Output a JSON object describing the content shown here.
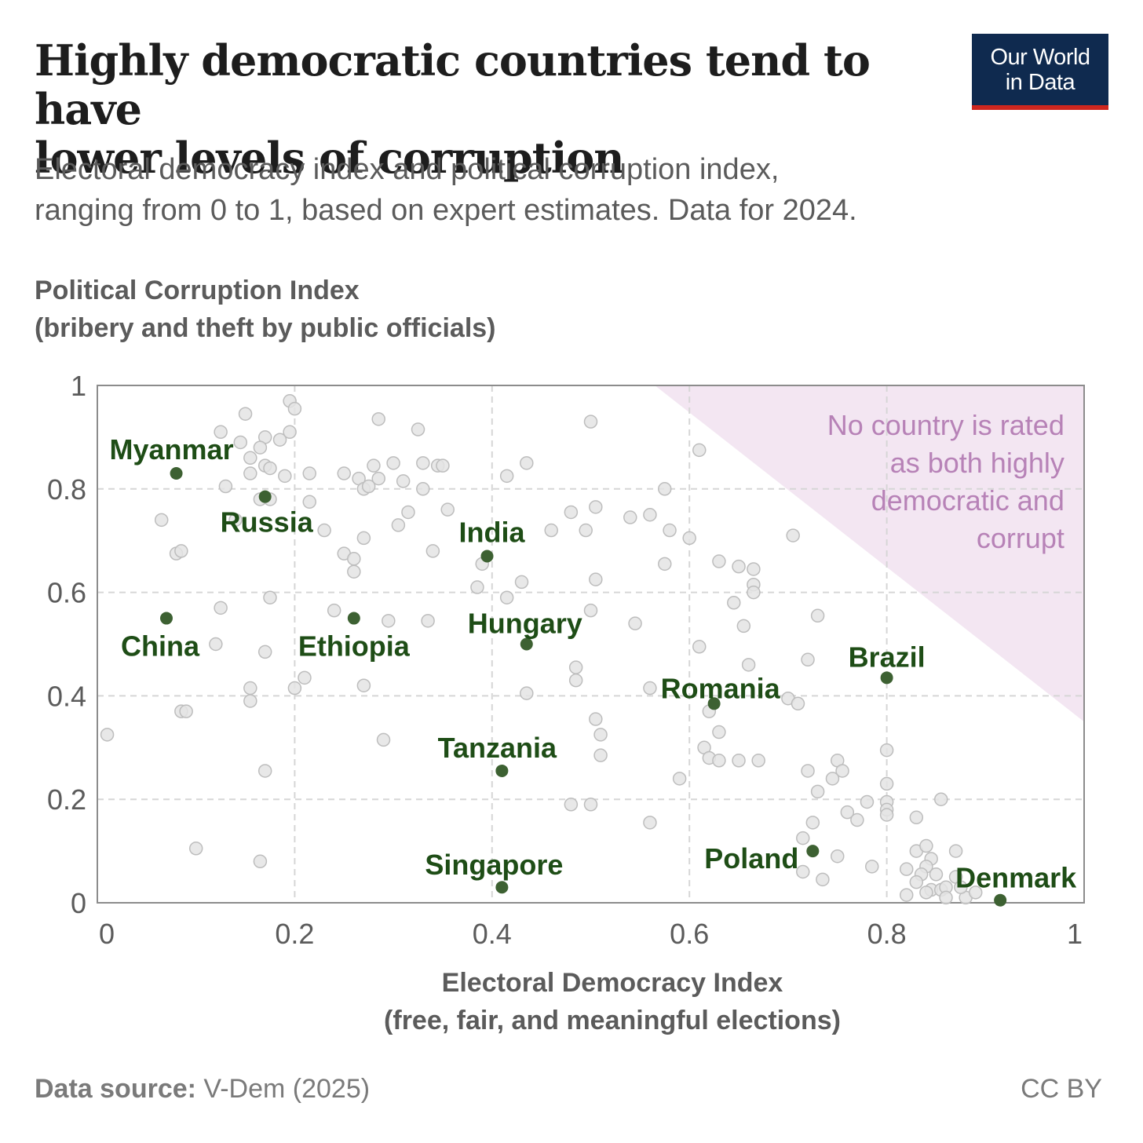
{
  "header": {
    "title_line1": "Highly democratic countries tend to have",
    "title_line2": "lower levels of corruption",
    "subtitle_line1": "Electoral democracy index and political corruption index,",
    "subtitle_line2": "ranging from 0 to 1, based on expert estimates. Data for 2024.",
    "logo_line1": "Our World",
    "logo_line2": "in Data"
  },
  "footer": {
    "source_label": "Data source:",
    "source_value": " V-Dem (2025)",
    "license": "CC BY"
  },
  "colors": {
    "highlight_point": "#3d6132",
    "highlight_label": "#1e4d16",
    "background_point": "#e4e4e4",
    "background_point_stroke": "#bdbdbd",
    "shaded_region": "#f3e6f2",
    "note_text": "#b782b7",
    "grid": "#d6d6d6",
    "axis_frame": "#8c8c8c"
  },
  "chart_data": {
    "type": "scatter",
    "title": "Highly democratic countries tend to have lower levels of corruption",
    "subtitle": "Electoral democracy index and political corruption index, ranging from 0 to 1, based on expert estimates. Data for 2024.",
    "xlabel_line1": "Electoral Democracy Index",
    "xlabel_line2": "(free, fair, and meaningful elections)",
    "ylabel_line1": "Political Corruption Index",
    "ylabel_line2": "(bribery and theft by public officials)",
    "xlim": [
      0,
      1
    ],
    "ylim": [
      0,
      1
    ],
    "xticks": [
      "0",
      "0.2",
      "0.4",
      "0.6",
      "0.8",
      "1"
    ],
    "yticks": [
      "0",
      "0.2",
      "0.4",
      "0.6",
      "0.8",
      "1"
    ],
    "grid": true,
    "shaded_region": {
      "polygon": [
        [
          0.565,
          1.0
        ],
        [
          1.0,
          1.0
        ],
        [
          1.0,
          0.35
        ]
      ],
      "note_lines": [
        "No country is rated",
        "as both highly",
        "democratic and",
        "corrupt"
      ]
    },
    "highlighted": [
      {
        "name": "Myanmar",
        "x": 0.08,
        "y": 0.83
      },
      {
        "name": "Russia",
        "x": 0.17,
        "y": 0.785
      },
      {
        "name": "India",
        "x": 0.395,
        "y": 0.67
      },
      {
        "name": "China",
        "x": 0.07,
        "y": 0.55
      },
      {
        "name": "Ethiopia",
        "x": 0.26,
        "y": 0.55
      },
      {
        "name": "Hungary",
        "x": 0.435,
        "y": 0.5
      },
      {
        "name": "Brazil",
        "x": 0.8,
        "y": 0.435
      },
      {
        "name": "Romania",
        "x": 0.625,
        "y": 0.385
      },
      {
        "name": "Tanzania",
        "x": 0.41,
        "y": 0.255
      },
      {
        "name": "Poland",
        "x": 0.725,
        "y": 0.1
      },
      {
        "name": "Singapore",
        "x": 0.41,
        "y": 0.03
      },
      {
        "name": "Denmark",
        "x": 0.915,
        "y": 0.005
      }
    ],
    "other_points": [
      [
        0.195,
        0.97
      ],
      [
        0.2,
        0.955
      ],
      [
        0.15,
        0.945
      ],
      [
        0.285,
        0.935
      ],
      [
        0.325,
        0.915
      ],
      [
        0.5,
        0.93
      ],
      [
        0.125,
        0.91
      ],
      [
        0.145,
        0.89
      ],
      [
        0.17,
        0.9
      ],
      [
        0.185,
        0.895
      ],
      [
        0.195,
        0.91
      ],
      [
        0.165,
        0.88
      ],
      [
        0.61,
        0.875
      ],
      [
        0.155,
        0.86
      ],
      [
        0.17,
        0.845
      ],
      [
        0.175,
        0.84
      ],
      [
        0.155,
        0.83
      ],
      [
        0.19,
        0.825
      ],
      [
        0.215,
        0.83
      ],
      [
        0.13,
        0.805
      ],
      [
        0.25,
        0.83
      ],
      [
        0.265,
        0.82
      ],
      [
        0.28,
        0.845
      ],
      [
        0.3,
        0.85
      ],
      [
        0.33,
        0.85
      ],
      [
        0.345,
        0.845
      ],
      [
        0.35,
        0.845
      ],
      [
        0.435,
        0.85
      ],
      [
        0.415,
        0.825
      ],
      [
        0.285,
        0.82
      ],
      [
        0.31,
        0.815
      ],
      [
        0.27,
        0.8
      ],
      [
        0.275,
        0.805
      ],
      [
        0.33,
        0.8
      ],
      [
        0.575,
        0.8
      ],
      [
        0.165,
        0.78
      ],
      [
        0.175,
        0.78
      ],
      [
        0.215,
        0.775
      ],
      [
        0.315,
        0.755
      ],
      [
        0.355,
        0.76
      ],
      [
        0.48,
        0.755
      ],
      [
        0.505,
        0.765
      ],
      [
        0.54,
        0.745
      ],
      [
        0.56,
        0.75
      ],
      [
        0.065,
        0.74
      ],
      [
        0.14,
        0.74
      ],
      [
        0.23,
        0.72
      ],
      [
        0.305,
        0.73
      ],
      [
        0.46,
        0.72
      ],
      [
        0.495,
        0.72
      ],
      [
        0.58,
        0.72
      ],
      [
        0.6,
        0.705
      ],
      [
        0.705,
        0.71
      ],
      [
        0.27,
        0.705
      ],
      [
        0.08,
        0.675
      ],
      [
        0.085,
        0.68
      ],
      [
        0.25,
        0.675
      ],
      [
        0.26,
        0.665
      ],
      [
        0.34,
        0.68
      ],
      [
        0.39,
        0.655
      ],
      [
        0.575,
        0.655
      ],
      [
        0.63,
        0.66
      ],
      [
        0.65,
        0.65
      ],
      [
        0.665,
        0.645
      ],
      [
        0.26,
        0.64
      ],
      [
        0.43,
        0.62
      ],
      [
        0.505,
        0.625
      ],
      [
        0.665,
        0.615
      ],
      [
        0.385,
        0.61
      ],
      [
        0.665,
        0.6
      ],
      [
        0.175,
        0.59
      ],
      [
        0.415,
        0.59
      ],
      [
        0.645,
        0.58
      ],
      [
        0.125,
        0.57
      ],
      [
        0.24,
        0.565
      ],
      [
        0.5,
        0.565
      ],
      [
        0.73,
        0.555
      ],
      [
        0.295,
        0.545
      ],
      [
        0.335,
        0.545
      ],
      [
        0.545,
        0.54
      ],
      [
        0.655,
        0.535
      ],
      [
        0.12,
        0.5
      ],
      [
        0.61,
        0.495
      ],
      [
        0.17,
        0.485
      ],
      [
        0.72,
        0.47
      ],
      [
        0.66,
        0.46
      ],
      [
        0.485,
        0.455
      ],
      [
        0.21,
        0.435
      ],
      [
        0.485,
        0.43
      ],
      [
        0.155,
        0.415
      ],
      [
        0.2,
        0.415
      ],
      [
        0.27,
        0.42
      ],
      [
        0.56,
        0.415
      ],
      [
        0.435,
        0.405
      ],
      [
        0.7,
        0.395
      ],
      [
        0.71,
        0.385
      ],
      [
        0.155,
        0.39
      ],
      [
        0.085,
        0.37
      ],
      [
        0.09,
        0.37
      ],
      [
        0.62,
        0.37
      ],
      [
        0.505,
        0.355
      ],
      [
        0.01,
        0.325
      ],
      [
        0.51,
        0.325
      ],
      [
        0.63,
        0.33
      ],
      [
        0.29,
        0.315
      ],
      [
        0.615,
        0.3
      ],
      [
        0.8,
        0.295
      ],
      [
        0.51,
        0.285
      ],
      [
        0.62,
        0.28
      ],
      [
        0.63,
        0.275
      ],
      [
        0.65,
        0.275
      ],
      [
        0.67,
        0.275
      ],
      [
        0.75,
        0.275
      ],
      [
        0.17,
        0.255
      ],
      [
        0.72,
        0.255
      ],
      [
        0.755,
        0.255
      ],
      [
        0.59,
        0.24
      ],
      [
        0.745,
        0.24
      ],
      [
        0.8,
        0.23
      ],
      [
        0.73,
        0.215
      ],
      [
        0.855,
        0.2
      ],
      [
        0.78,
        0.195
      ],
      [
        0.8,
        0.195
      ],
      [
        0.48,
        0.19
      ],
      [
        0.5,
        0.19
      ],
      [
        0.8,
        0.18
      ],
      [
        0.76,
        0.175
      ],
      [
        0.8,
        0.17
      ],
      [
        0.77,
        0.16
      ],
      [
        0.83,
        0.165
      ],
      [
        0.725,
        0.155
      ],
      [
        0.56,
        0.155
      ],
      [
        0.715,
        0.125
      ],
      [
        0.1,
        0.105
      ],
      [
        0.83,
        0.1
      ],
      [
        0.84,
        0.11
      ],
      [
        0.87,
        0.1
      ],
      [
        0.75,
        0.09
      ],
      [
        0.845,
        0.085
      ],
      [
        0.165,
        0.08
      ],
      [
        0.785,
        0.07
      ],
      [
        0.84,
        0.07
      ],
      [
        0.715,
        0.06
      ],
      [
        0.82,
        0.065
      ],
      [
        0.835,
        0.055
      ],
      [
        0.85,
        0.055
      ],
      [
        0.735,
        0.045
      ],
      [
        0.83,
        0.04
      ],
      [
        0.87,
        0.05
      ],
      [
        0.845,
        0.025
      ],
      [
        0.84,
        0.02
      ],
      [
        0.855,
        0.025
      ],
      [
        0.86,
        0.03
      ],
      [
        0.82,
        0.015
      ],
      [
        0.86,
        0.01
      ],
      [
        0.88,
        0.01
      ],
      [
        0.875,
        0.03
      ],
      [
        0.89,
        0.02
      ]
    ]
  }
}
